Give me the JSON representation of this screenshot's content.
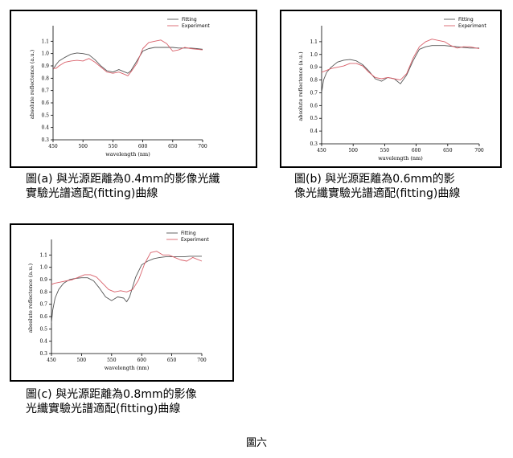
{
  "figure_title": "圖六",
  "colors": {
    "fitting": "#555555",
    "experiment": "#d9606a"
  },
  "chart_data": [
    {
      "id": "a",
      "type": "line",
      "caption": "圖(a) 與光源距離為0.4mm的影像光纖\n實驗光譜適配(fitting)曲線",
      "xlabel": "wavelength (nm)",
      "ylabel": "absolute reflectence (a.u.)",
      "xlim": [
        450,
        700
      ],
      "ylim": [
        0.3,
        1.2
      ],
      "xticks": [
        450,
        500,
        550,
        600,
        650,
        700
      ],
      "yticks": [
        0.3,
        0.4,
        0.5,
        0.6,
        0.7,
        0.8,
        0.9,
        1.0,
        1.1
      ],
      "grid": false,
      "legend": "top-right",
      "series": [
        {
          "name": "Fitting",
          "x": [
            450,
            455,
            460,
            470,
            480,
            490,
            500,
            510,
            520,
            530,
            540,
            550,
            560,
            570,
            575,
            580,
            590,
            600,
            610,
            620,
            630,
            640,
            650,
            660,
            670,
            680,
            690,
            700
          ],
          "y": [
            0.87,
            0.91,
            0.94,
            0.97,
            0.995,
            1.005,
            1.0,
            0.99,
            0.95,
            0.9,
            0.86,
            0.85,
            0.87,
            0.85,
            0.84,
            0.86,
            0.94,
            1.02,
            1.04,
            1.05,
            1.05,
            1.05,
            1.05,
            1.045,
            1.045,
            1.045,
            1.04,
            1.035
          ]
        },
        {
          "name": "Experiment",
          "x": [
            450,
            455,
            460,
            470,
            480,
            490,
            500,
            510,
            520,
            530,
            540,
            550,
            560,
            570,
            575,
            580,
            590,
            600,
            610,
            620,
            630,
            640,
            650,
            660,
            670,
            680,
            690,
            700
          ],
          "y": [
            0.88,
            0.88,
            0.9,
            0.93,
            0.94,
            0.945,
            0.94,
            0.96,
            0.93,
            0.89,
            0.85,
            0.84,
            0.85,
            0.83,
            0.82,
            0.85,
            0.92,
            1.04,
            1.09,
            1.1,
            1.11,
            1.08,
            1.02,
            1.03,
            1.05,
            1.04,
            1.035,
            1.03
          ]
        }
      ]
    },
    {
      "id": "b",
      "type": "line",
      "caption": "圖(b) 與光源距離為0.6mm的影\n像光纖實驗光譜適配(fitting)曲線",
      "xlabel": "wavelength (nm)",
      "ylabel": "absolute reflectence (a.u.)",
      "xlim": [
        450,
        700
      ],
      "ylim": [
        0.3,
        1.2
      ],
      "xticks": [
        450,
        500,
        550,
        600,
        650,
        700
      ],
      "yticks": [
        0.3,
        0.4,
        0.5,
        0.6,
        0.7,
        0.8,
        0.9,
        1.0,
        1.1
      ],
      "grid": false,
      "legend": "top-right",
      "series": [
        {
          "name": "Fitting",
          "x": [
            450,
            453,
            458,
            465,
            475,
            485,
            495,
            505,
            515,
            525,
            535,
            545,
            555,
            565,
            575,
            585,
            595,
            605,
            615,
            625,
            635,
            645,
            655,
            665,
            675,
            685,
            695,
            700
          ],
          "y": [
            0.7,
            0.8,
            0.86,
            0.9,
            0.94,
            0.955,
            0.96,
            0.95,
            0.92,
            0.87,
            0.81,
            0.79,
            0.82,
            0.81,
            0.77,
            0.84,
            0.95,
            1.04,
            1.06,
            1.07,
            1.07,
            1.07,
            1.065,
            1.06,
            1.055,
            1.05,
            1.05,
            1.05
          ]
        },
        {
          "name": "Experiment",
          "x": [
            450,
            455,
            465,
            475,
            485,
            495,
            505,
            515,
            525,
            535,
            545,
            555,
            565,
            575,
            585,
            595,
            605,
            615,
            625,
            635,
            645,
            655,
            665,
            675,
            685,
            695,
            700
          ],
          "y": [
            0.86,
            0.87,
            0.89,
            0.9,
            0.91,
            0.93,
            0.93,
            0.91,
            0.86,
            0.82,
            0.81,
            0.82,
            0.81,
            0.8,
            0.85,
            0.97,
            1.06,
            1.1,
            1.12,
            1.11,
            1.1,
            1.07,
            1.05,
            1.06,
            1.06,
            1.05,
            1.045
          ]
        }
      ]
    },
    {
      "id": "c",
      "type": "line",
      "caption": "圖(c) 與光源距離為0.8mm的影像\n光纖實驗光譜適配(fitting)曲線",
      "xlabel": "wavelength (nm)",
      "ylabel": "absolute reflectence (a.u.)",
      "xlim": [
        450,
        700
      ],
      "ylim": [
        0.3,
        1.2
      ],
      "xticks": [
        450,
        500,
        550,
        600,
        650,
        700
      ],
      "yticks": [
        0.3,
        0.4,
        0.5,
        0.6,
        0.7,
        0.8,
        0.9,
        1.0,
        1.1
      ],
      "grid": false,
      "legend": "top-right",
      "series": [
        {
          "name": "Fitting",
          "x": [
            450,
            452,
            456,
            462,
            470,
            480,
            490,
            500,
            510,
            520,
            530,
            540,
            550,
            560,
            570,
            575,
            580,
            590,
            600,
            610,
            620,
            630,
            640,
            650,
            660,
            670,
            680,
            690,
            700
          ],
          "y": [
            0.55,
            0.65,
            0.75,
            0.82,
            0.87,
            0.9,
            0.91,
            0.915,
            0.915,
            0.89,
            0.83,
            0.76,
            0.73,
            0.76,
            0.75,
            0.72,
            0.76,
            0.92,
            1.02,
            1.05,
            1.07,
            1.08,
            1.085,
            1.085,
            1.085,
            1.085,
            1.09,
            1.09,
            1.09
          ]
        },
        {
          "name": "Experiment",
          "x": [
            450,
            455,
            465,
            475,
            485,
            495,
            505,
            515,
            525,
            535,
            545,
            555,
            565,
            575,
            585,
            595,
            605,
            615,
            625,
            635,
            645,
            655,
            665,
            675,
            685,
            695,
            700
          ],
          "y": [
            0.86,
            0.87,
            0.88,
            0.89,
            0.9,
            0.92,
            0.94,
            0.94,
            0.92,
            0.87,
            0.82,
            0.8,
            0.81,
            0.8,
            0.82,
            0.9,
            1.03,
            1.12,
            1.13,
            1.1,
            1.1,
            1.08,
            1.06,
            1.05,
            1.08,
            1.06,
            1.05
          ]
        }
      ]
    }
  ]
}
